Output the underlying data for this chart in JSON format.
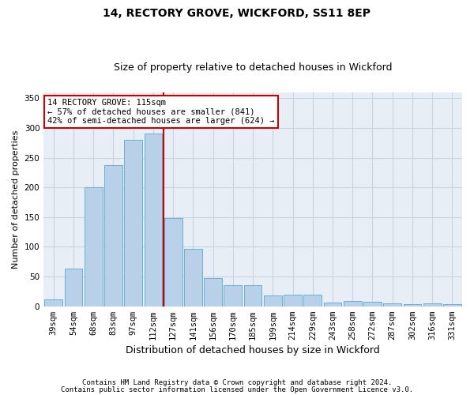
{
  "title1": "14, RECTORY GROVE, WICKFORD, SS11 8EP",
  "title2": "Size of property relative to detached houses in Wickford",
  "xlabel": "Distribution of detached houses by size in Wickford",
  "ylabel": "Number of detached properties",
  "categories": [
    "39sqm",
    "54sqm",
    "68sqm",
    "83sqm",
    "97sqm",
    "112sqm",
    "127sqm",
    "141sqm",
    "156sqm",
    "170sqm",
    "185sqm",
    "199sqm",
    "214sqm",
    "229sqm",
    "243sqm",
    "258sqm",
    "272sqm",
    "287sqm",
    "302sqm",
    "316sqm",
    "331sqm"
  ],
  "values": [
    11,
    64,
    200,
    238,
    280,
    291,
    149,
    97,
    47,
    35,
    35,
    18,
    19,
    19,
    6,
    9,
    7,
    5,
    3,
    5,
    3
  ],
  "bar_color": "#b8d0e8",
  "bar_edge_color": "#6baed6",
  "grid_color": "#c8d4e0",
  "background_color": "#e8eef5",
  "vline_x_index": 5,
  "vline_color": "#cc0000",
  "annotation_text": "14 RECTORY GROVE: 115sqm\n← 57% of detached houses are smaller (841)\n42% of semi-detached houses are larger (624) →",
  "annotation_box_color": "#ffffff",
  "annotation_box_edge_color": "#cc0000",
  "footer1": "Contains HM Land Registry data © Crown copyright and database right 2024.",
  "footer2": "Contains public sector information licensed under the Open Government Licence v3.0.",
  "ylim": [
    0,
    360
  ],
  "yticks": [
    0,
    50,
    100,
    150,
    200,
    250,
    300,
    350
  ],
  "title1_fontsize": 10,
  "title2_fontsize": 9,
  "xlabel_fontsize": 9,
  "ylabel_fontsize": 8,
  "tick_fontsize": 7.5,
  "footer_fontsize": 6.5
}
